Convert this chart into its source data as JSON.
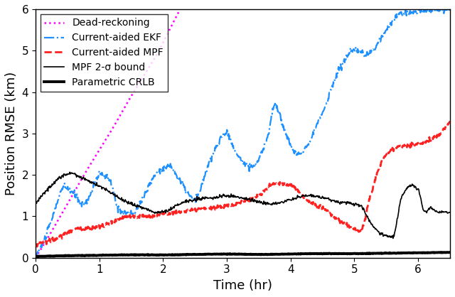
{
  "xlabel": "Time (hr)",
  "ylabel": "Position RMSE (km)",
  "xlim": [
    0,
    6.5
  ],
  "ylim": [
    0,
    6
  ],
  "yticks": [
    0,
    1,
    2,
    3,
    4,
    5,
    6
  ],
  "xticks": [
    0,
    1,
    2,
    3,
    4,
    5,
    6
  ],
  "legend_entries": [
    "Dead-reckoning",
    "Current-aided EKF",
    "Current-aided MPF",
    "MPF 2-σ bound",
    "Parametric CRLB"
  ],
  "colors": {
    "dead_reckoning": "#FF00FF",
    "ekf": "#1E90FF",
    "mpf": "#FF2020",
    "mpf_bound": "#000000",
    "crlb": "#000000"
  },
  "dr_knots_t": [
    0.0,
    0.2,
    0.5,
    0.8,
    1.0,
    1.2,
    1.5,
    1.7,
    1.9,
    2.1,
    2.25
  ],
  "dr_knots_y": [
    0.0,
    0.5,
    1.3,
    2.1,
    2.6,
    3.1,
    3.9,
    4.4,
    4.9,
    5.5,
    5.95
  ],
  "ekf_knots_t": [
    0.0,
    0.1,
    0.25,
    0.45,
    0.6,
    0.75,
    0.85,
    1.0,
    1.15,
    1.3,
    1.5,
    1.7,
    1.9,
    2.1,
    2.25,
    2.5,
    2.7,
    3.0,
    3.15,
    3.4,
    3.65,
    3.75,
    3.9,
    4.1,
    4.5,
    4.75,
    5.0,
    5.2,
    5.5,
    5.75,
    6.0,
    6.3,
    6.5
  ],
  "ekf_knots_y": [
    0.05,
    0.3,
    0.9,
    1.7,
    1.55,
    1.3,
    1.5,
    2.0,
    1.9,
    1.2,
    1.05,
    1.5,
    2.05,
    2.2,
    1.9,
    1.4,
    2.2,
    3.0,
    2.5,
    2.2,
    3.0,
    3.7,
    3.1,
    2.5,
    3.5,
    4.5,
    5.0,
    4.9,
    5.5,
    5.9,
    5.95,
    6.0,
    6.0
  ],
  "mpf_knots_t": [
    0.0,
    0.05,
    0.15,
    0.3,
    0.5,
    0.65,
    0.8,
    1.0,
    1.2,
    1.5,
    1.75,
    2.0,
    2.25,
    2.5,
    2.75,
    3.0,
    3.25,
    3.5,
    3.75,
    4.0,
    4.15,
    4.25,
    4.5,
    4.75,
    5.0,
    5.1,
    5.25,
    5.5,
    5.75,
    6.0,
    6.25,
    6.5
  ],
  "mpf_knots_y": [
    0.3,
    0.35,
    0.4,
    0.45,
    0.6,
    0.7,
    0.72,
    0.75,
    0.85,
    1.0,
    1.0,
    1.05,
    1.1,
    1.15,
    1.2,
    1.25,
    1.35,
    1.5,
    1.8,
    1.75,
    1.55,
    1.4,
    1.2,
    0.9,
    0.7,
    0.65,
    1.5,
    2.5,
    2.7,
    2.75,
    2.9,
    3.3
  ],
  "bound_knots_t": [
    0.0,
    0.1,
    0.25,
    0.4,
    0.55,
    0.7,
    0.9,
    1.1,
    1.3,
    1.5,
    1.7,
    1.9,
    2.1,
    2.25,
    2.5,
    2.75,
    3.0,
    3.25,
    3.5,
    3.75,
    4.0,
    4.25,
    4.5,
    4.75,
    5.0,
    5.1,
    5.25,
    5.4,
    5.6,
    5.75,
    5.9,
    6.0,
    6.1,
    6.2,
    6.3,
    6.5
  ],
  "bound_knots_y": [
    1.3,
    1.5,
    1.75,
    1.95,
    2.05,
    1.95,
    1.8,
    1.65,
    1.45,
    1.3,
    1.2,
    1.1,
    1.15,
    1.3,
    1.4,
    1.45,
    1.5,
    1.45,
    1.35,
    1.3,
    1.4,
    1.5,
    1.45,
    1.35,
    1.3,
    1.25,
    0.85,
    0.6,
    0.5,
    1.5,
    1.75,
    1.65,
    1.1,
    1.2,
    1.1,
    1.1
  ],
  "crlb_knots_t": [
    0.0,
    0.5,
    1.0,
    1.5,
    2.0,
    2.5,
    3.0,
    3.5,
    4.0,
    4.5,
    5.0,
    5.5,
    6.0,
    6.5
  ],
  "crlb_knots_y": [
    0.03,
    0.05,
    0.06,
    0.07,
    0.07,
    0.08,
    0.09,
    0.08,
    0.09,
    0.1,
    0.1,
    0.11,
    0.12,
    0.13
  ]
}
